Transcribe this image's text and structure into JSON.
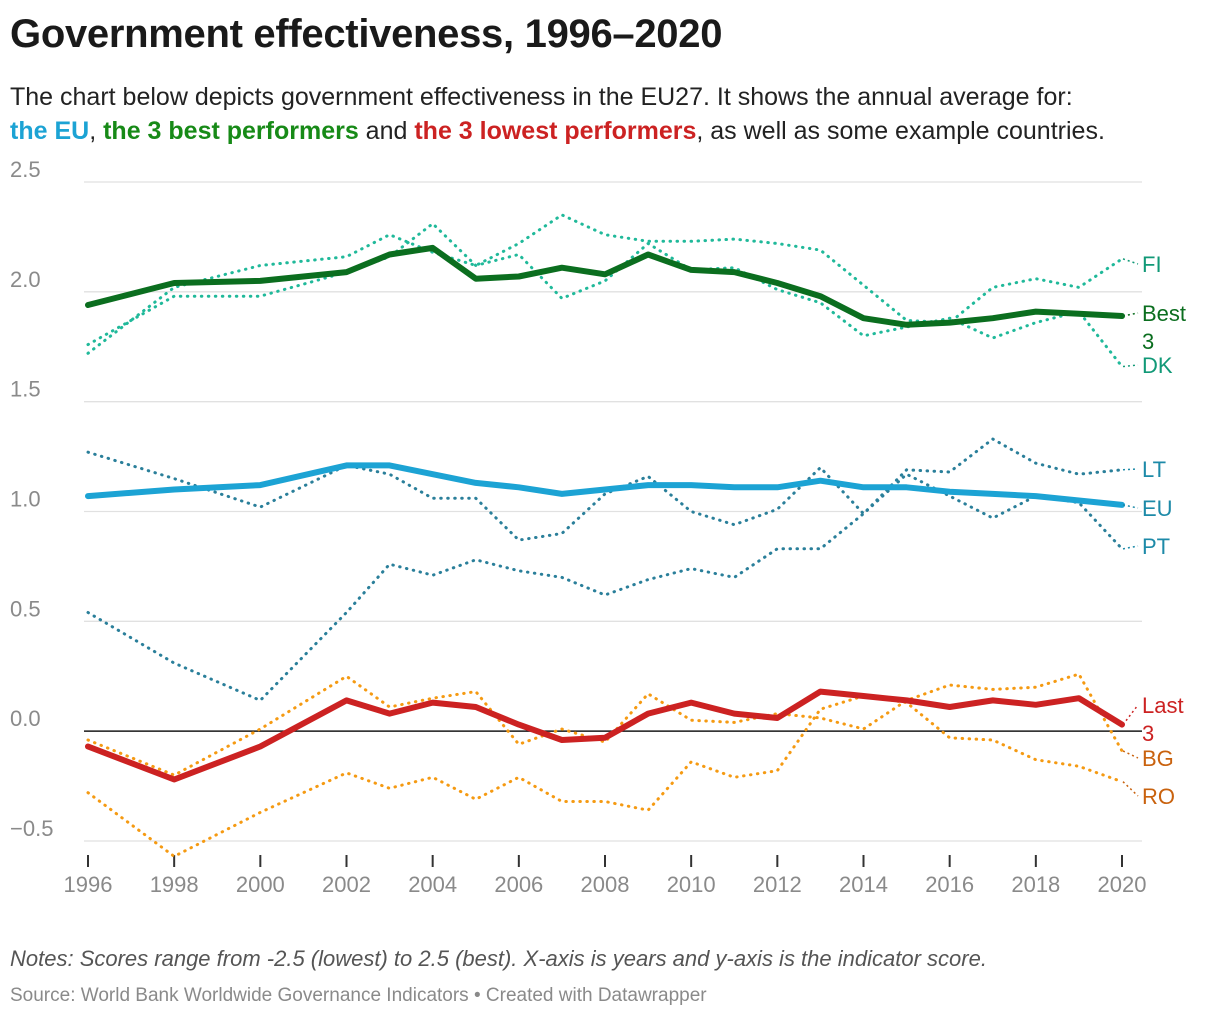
{
  "header": {
    "title": "Government effectiveness, 1996–2020",
    "intro_1": "The chart below depicts government effectiveness in the EU27. It shows the annual average for:",
    "hl_eu": "the EU",
    "sep_1": ", ",
    "hl_best": "the 3 best performers",
    "sep_2": " and ",
    "hl_low": "the 3 lowest performers",
    "intro_2": ", as well as some example countries."
  },
  "footer": {
    "notes": "Notes: Scores range from -2.5 (lowest) to 2.5 (best). X-axis is years and y-axis is the indicator score.",
    "source": "Source: World Bank Worldwide Governance Indicators • Created with Datawrapper"
  },
  "colors": {
    "eu": "#1ca3d4",
    "best": "#0b6e1f",
    "last": "#cc2222",
    "teal": "#20b99a",
    "steel": "#2a7f9a",
    "orange": "#f59a12",
    "label_teal": "#119977",
    "label_steel": "#1d8aa8",
    "label_orange": "#c9620e"
  },
  "chart_data": {
    "type": "line",
    "xlabel": "",
    "ylabel": "",
    "xlim": [
      1996,
      2020
    ],
    "ylim": [
      -0.5,
      2.5
    ],
    "x_ticks": [
      "1996",
      "1998",
      "2000",
      "2002",
      "2004",
      "2006",
      "2008",
      "2010",
      "2012",
      "2014",
      "2016",
      "2018",
      "2020"
    ],
    "y_ticks": [
      2.5,
      2.0,
      1.5,
      1.0,
      0.5,
      0.0,
      -0.5
    ],
    "y_tick_labels": [
      "2.5",
      "2.0",
      "1.5",
      "1.0",
      "0.5",
      "0.0",
      "−0.5"
    ],
    "zero_line": true,
    "grid": true,
    "series": [
      {
        "name": "FI",
        "style": "dotted",
        "color": "teal",
        "label_color": "label_teal",
        "x": [
          1996,
          1998,
          2000,
          2002,
          2003,
          2004,
          2005,
          2006,
          2007,
          2008,
          2009,
          2010,
          2011,
          2012,
          2013,
          2014,
          2015,
          2016,
          2017,
          2018,
          2019,
          2020
        ],
        "y": [
          1.72,
          2.02,
          2.12,
          2.16,
          2.26,
          2.18,
          2.12,
          2.22,
          2.35,
          2.26,
          2.23,
          2.23,
          2.24,
          2.22,
          2.19,
          2.03,
          1.87,
          1.86,
          2.02,
          2.06,
          2.02,
          2.15
        ]
      },
      {
        "name": "DK",
        "style": "dotted",
        "color": "teal",
        "label_color": "label_teal",
        "x": [
          1996,
          1998,
          2000,
          2002,
          2003,
          2004,
          2005,
          2006,
          2007,
          2008,
          2009,
          2010,
          2011,
          2012,
          2013,
          2014,
          2015,
          2016,
          2017,
          2018,
          2019,
          2020
        ],
        "y": [
          1.76,
          1.98,
          1.98,
          2.09,
          2.16,
          2.31,
          2.12,
          2.17,
          1.97,
          2.05,
          2.22,
          2.1,
          2.11,
          2.01,
          1.95,
          1.8,
          1.84,
          1.88,
          1.79,
          1.86,
          1.91,
          1.66
        ]
      },
      {
        "name": "LT",
        "style": "dotted",
        "color": "steel",
        "label_color": "label_steel",
        "x": [
          1996,
          1998,
          2000,
          2002,
          2003,
          2004,
          2005,
          2006,
          2007,
          2008,
          2009,
          2010,
          2011,
          2012,
          2013,
          2014,
          2015,
          2016,
          2017,
          2018,
          2019,
          2020
        ],
        "y": [
          0.54,
          0.31,
          0.14,
          0.54,
          0.76,
          0.71,
          0.78,
          0.73,
          0.7,
          0.62,
          0.69,
          0.74,
          0.7,
          0.83,
          0.83,
          0.99,
          1.19,
          1.18,
          1.33,
          1.22,
          1.17,
          1.19
        ]
      },
      {
        "name": "PT",
        "style": "dotted",
        "color": "steel",
        "label_color": "label_steel",
        "x": [
          1996,
          1998,
          2000,
          2002,
          2003,
          2004,
          2005,
          2006,
          2007,
          2008,
          2009,
          2010,
          2011,
          2012,
          2013,
          2014,
          2015,
          2016,
          2017,
          2018,
          2019,
          2020
        ],
        "y": [
          1.27,
          1.15,
          1.02,
          1.21,
          1.17,
          1.06,
          1.06,
          0.87,
          0.9,
          1.08,
          1.16,
          1.0,
          0.94,
          1.01,
          1.2,
          0.99,
          1.17,
          1.07,
          0.97,
          1.07,
          1.04,
          0.83
        ]
      },
      {
        "name": "EU",
        "style": "solid",
        "color": "eu",
        "label_color": "label_steel",
        "x": [
          1996,
          1998,
          2000,
          2002,
          2003,
          2004,
          2005,
          2006,
          2007,
          2008,
          2009,
          2010,
          2011,
          2012,
          2013,
          2014,
          2015,
          2016,
          2017,
          2018,
          2019,
          2020
        ],
        "y": [
          1.07,
          1.1,
          1.12,
          1.21,
          1.21,
          1.17,
          1.13,
          1.11,
          1.08,
          1.1,
          1.12,
          1.12,
          1.11,
          1.11,
          1.14,
          1.11,
          1.11,
          1.09,
          1.08,
          1.07,
          1.05,
          1.03
        ]
      },
      {
        "name": "BG",
        "style": "dotted",
        "color": "orange",
        "label_color": "label_orange",
        "x": [
          1996,
          1998,
          2000,
          2002,
          2003,
          2004,
          2005,
          2006,
          2007,
          2008,
          2009,
          2010,
          2011,
          2012,
          2013,
          2014,
          2015,
          2016,
          2017,
          2018,
          2019,
          2020
        ],
        "y": [
          -0.04,
          -0.2,
          0.01,
          0.25,
          0.11,
          0.15,
          0.18,
          -0.06,
          0.01,
          -0.05,
          0.17,
          0.05,
          0.04,
          0.08,
          0.06,
          0.01,
          0.14,
          0.21,
          0.19,
          0.2,
          0.26,
          -0.09
        ]
      },
      {
        "name": "RO",
        "style": "dotted",
        "color": "orange",
        "label_color": "label_orange",
        "x": [
          1996,
          1998,
          2000,
          2002,
          2003,
          2004,
          2005,
          2006,
          2007,
          2008,
          2009,
          2010,
          2011,
          2012,
          2013,
          2014,
          2015,
          2016,
          2017,
          2018,
          2019,
          2020
        ],
        "y": [
          -0.28,
          -0.57,
          -0.37,
          -0.19,
          -0.26,
          -0.21,
          -0.31,
          -0.21,
          -0.32,
          -0.32,
          -0.36,
          -0.14,
          -0.21,
          -0.18,
          0.1,
          0.16,
          0.13,
          -0.03,
          -0.04,
          -0.13,
          -0.16,
          -0.23
        ]
      },
      {
        "name": "Best 3",
        "style": "solid-thick",
        "color": "best",
        "label_color": "best",
        "x": [
          1996,
          1998,
          2000,
          2002,
          2003,
          2004,
          2005,
          2006,
          2007,
          2008,
          2009,
          2010,
          2011,
          2012,
          2013,
          2014,
          2015,
          2016,
          2017,
          2018,
          2019,
          2020
        ],
        "y": [
          1.94,
          2.04,
          2.05,
          2.09,
          2.17,
          2.2,
          2.06,
          2.07,
          2.11,
          2.08,
          2.17,
          2.1,
          2.09,
          2.04,
          1.98,
          1.88,
          1.85,
          1.86,
          1.88,
          1.91,
          1.9,
          1.89
        ]
      },
      {
        "name": "Last 3",
        "style": "solid-thick",
        "color": "last",
        "label_color": "last",
        "x": [
          1996,
          1998,
          2000,
          2002,
          2003,
          2004,
          2005,
          2006,
          2007,
          2008,
          2009,
          2010,
          2011,
          2012,
          2013,
          2014,
          2015,
          2016,
          2017,
          2018,
          2019,
          2020
        ],
        "y": [
          -0.07,
          -0.22,
          -0.07,
          0.14,
          0.08,
          0.13,
          0.11,
          0.03,
          -0.04,
          -0.03,
          0.08,
          0.13,
          0.08,
          0.06,
          0.18,
          0.16,
          0.14,
          0.11,
          0.14,
          0.12,
          0.15,
          0.03
        ]
      }
    ]
  }
}
